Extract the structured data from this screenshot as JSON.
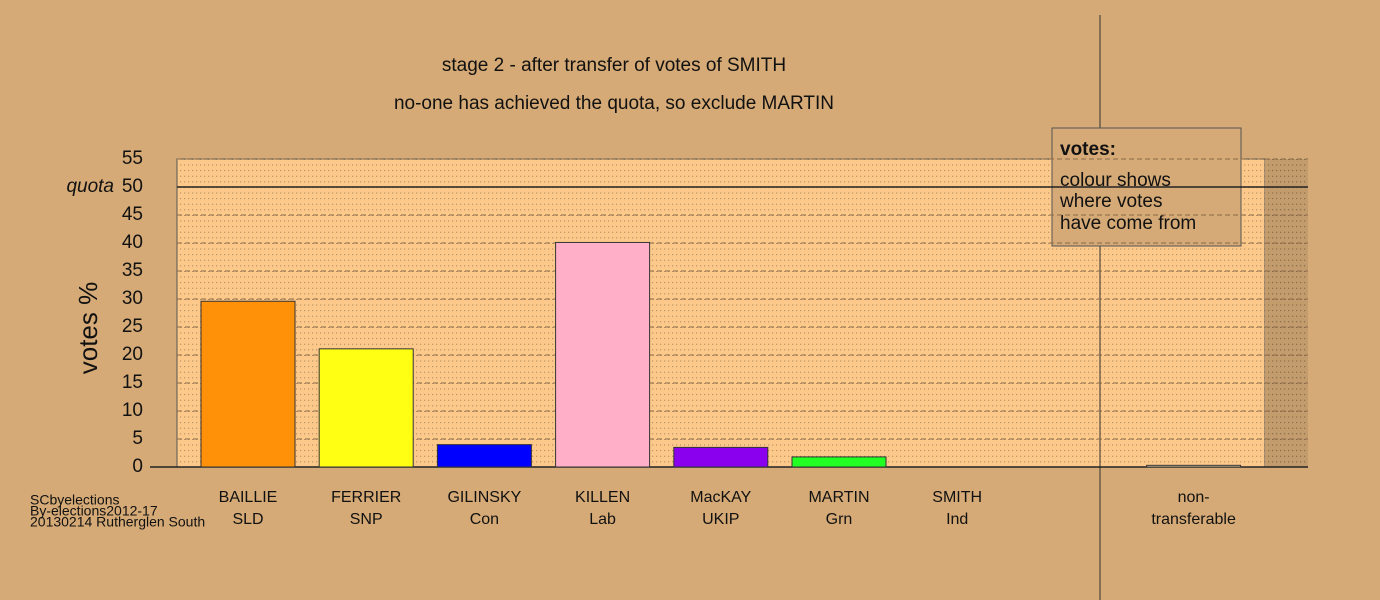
{
  "chart_data": {
    "type": "bar",
    "title": "stage 2 - after transfer of votes of SMITH",
    "subtitle": "no-one has achieved the quota, so exclude MARTIN",
    "y_label": "votes %",
    "categories": [
      [
        "BAILLIE",
        "SLD"
      ],
      [
        "FERRIER",
        "SNP"
      ],
      [
        "GILINSKY",
        "Con"
      ],
      [
        "KILLEN",
        "Lab"
      ],
      [
        "MacKAY",
        "UKIP"
      ],
      [
        "MARTIN",
        "Grn"
      ],
      [
        "SMITH",
        "Ind"
      ],
      null,
      [
        "non-",
        "transferable"
      ]
    ],
    "values": [
      29.6,
      21.1,
      4.0,
      40.1,
      3.5,
      1.8,
      0,
      null,
      0.3
    ],
    "colors": [
      "#ff9108",
      "#ffff14",
      "#0000ff",
      "#ffb0c8",
      "#8a00ee",
      "#22ff22",
      "#000000",
      null,
      "#f2d2a6"
    ],
    "ylim": [
      0,
      55
    ],
    "yticks": [
      0,
      5,
      10,
      15,
      20,
      25,
      30,
      35,
      40,
      45,
      50,
      55
    ],
    "grid": true,
    "quota": {
      "label": "quota",
      "value": 50
    },
    "legend": {
      "title": "votes:",
      "lines": [
        "colour shows",
        "where votes",
        "have come from"
      ]
    },
    "footer": [
      "SCbyelections",
      "By-elections2012-17",
      "20130214 Rutherglen South"
    ]
  }
}
